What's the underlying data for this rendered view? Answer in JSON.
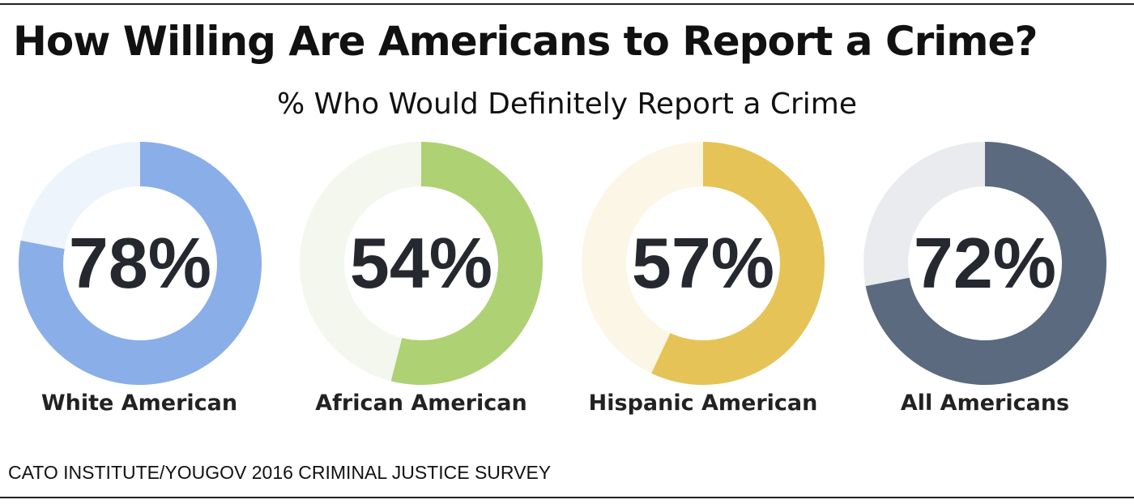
{
  "title": "How Willing Are Americans to Report a Crime?",
  "source": "CATO INSTITUTE/YOUGOV 2016 CRIMINAL JUSTICE SURVEY",
  "chart_data": {
    "type": "pie",
    "subtitle": "% Who Would Definitely Report a Crime",
    "charts": [
      {
        "label": "White American",
        "value": 78,
        "display": "78%",
        "color": "#8aaee8",
        "track": "#eef4fb"
      },
      {
        "label": "African American",
        "value": 54,
        "display": "54%",
        "color": "#aed174",
        "track": "#f4f7ed"
      },
      {
        "label": "Hispanic American",
        "value": 57,
        "display": "57%",
        "color": "#e6c356",
        "track": "#fbf6e6"
      },
      {
        "label": "All Americans",
        "value": 72,
        "display": "72%",
        "color": "#5b6a7e",
        "track": "#e9ebef"
      }
    ]
  }
}
